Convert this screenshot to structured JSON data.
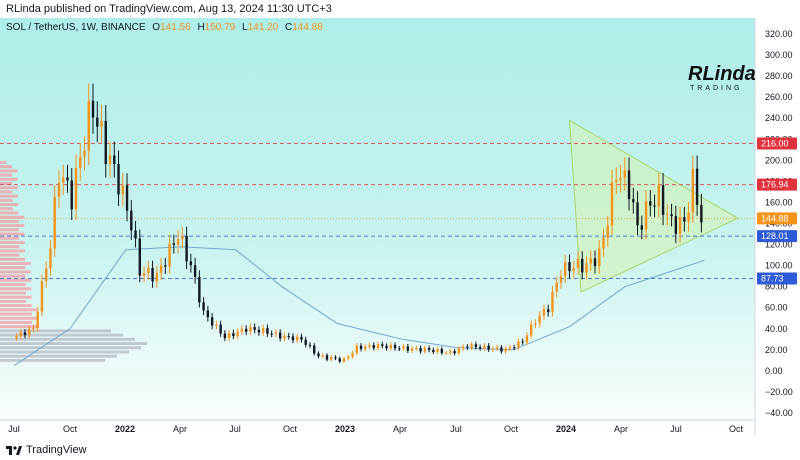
{
  "header": {
    "published": "RLinda published on TradingView.com, Aug 13, 2024 11:30 UTC+3"
  },
  "footer": {
    "brand": "TradingView"
  },
  "legend": {
    "symbol": "SOL / TetherUS, 1W, BINANCE",
    "o_label": "O",
    "o_value": "141.56",
    "h_label": "H",
    "h_value": "150.79",
    "l_label": "L",
    "l_value": "141.20",
    "c_label": "C",
    "c_value": "144.88"
  },
  "watermark": {
    "line1": "RLinda",
    "line2": "TRADING"
  },
  "colors": {
    "up": "#f7931a",
    "down": "#131722",
    "bg_top": "#aeeeea",
    "bg_bottom": "#ffffff",
    "ma": "#6ea7d6",
    "level": "#4a5dbd",
    "triangle": "#d6f2b0",
    "triangle_stroke": "#a8d66b"
  },
  "chart_data": {
    "type": "candlestick",
    "title": "SOL / TetherUS, 1W, BINANCE",
    "xlabel": "",
    "ylabel": "",
    "ylim": [
      -40,
      320
    ],
    "y_ticks": [
      "320.00",
      "300.00",
      "280.00",
      "260.00",
      "240.00",
      "220.00",
      "200.00",
      "180.00",
      "160.00",
      "140.00",
      "120.00",
      "100.00",
      "80.00",
      "60.00",
      "40.00",
      "20.00",
      "0.00",
      "−20.00",
      "−40.00"
    ],
    "x_ticks": [
      "Jul",
      "Oct",
      "2022",
      "Apr",
      "Jul",
      "Oct",
      "2023",
      "Apr",
      "Jul",
      "Oct",
      "2024",
      "Apr",
      "Jul",
      "Oct"
    ],
    "price_levels": [
      {
        "label": "216.00",
        "value": 216,
        "color": "#e0323c",
        "style": "dashed"
      },
      {
        "label": "176.94",
        "value": 176.94,
        "color": "#e0323c",
        "style": "dashed"
      },
      {
        "label": "144.88",
        "value": 144.88,
        "color": "#f7931a",
        "style": "dotted"
      },
      {
        "label": "128.01",
        "value": 128.01,
        "color": "#2e5bd8",
        "style": "dashed"
      },
      {
        "label": "87.73",
        "value": 87.73,
        "color": "#2e5bd8",
        "style": "dashed"
      }
    ],
    "triangle": {
      "apex_date": "2024-10-04",
      "apex_price": 145,
      "top_date": "2024-01-01",
      "top_price": 238,
      "bottom_date": "2024-01-20",
      "bottom_price": 75
    },
    "moving_average": [
      {
        "date": "2021-07-01",
        "value": 5
      },
      {
        "date": "2021-10-01",
        "value": 40
      },
      {
        "date": "2022-01-01",
        "value": 115
      },
      {
        "date": "2022-04-01",
        "value": 118
      },
      {
        "date": "2022-07-01",
        "value": 115
      },
      {
        "date": "2022-09-15",
        "value": 80
      },
      {
        "date": "2022-12-15",
        "value": 45
      },
      {
        "date": "2023-04-01",
        "value": 30
      },
      {
        "date": "2023-07-01",
        "value": 22
      },
      {
        "date": "2023-10-01",
        "value": 20
      },
      {
        "date": "2024-01-01",
        "value": 42
      },
      {
        "date": "2024-04-01",
        "value": 80
      },
      {
        "date": "2024-08-10",
        "value": 105
      }
    ],
    "ohlc_weekly_close": [
      {
        "date": "2021-07-05",
        "value": 33
      },
      {
        "date": "2021-08-02",
        "value": 40
      },
      {
        "date": "2021-08-30",
        "value": 120
      },
      {
        "date": "2021-09-13",
        "value": 190
      },
      {
        "date": "2021-10-04",
        "value": 165
      },
      {
        "date": "2021-11-01",
        "value": 240
      },
      {
        "date": "2021-11-08",
        "value": 250
      },
      {
        "date": "2021-11-29",
        "value": 210
      },
      {
        "date": "2021-12-20",
        "value": 180
      },
      {
        "date": "2022-01-10",
        "value": 140
      },
      {
        "date": "2022-01-24",
        "value": 95
      },
      {
        "date": "2022-02-21",
        "value": 90
      },
      {
        "date": "2022-03-28",
        "value": 130
      },
      {
        "date": "2022-04-18",
        "value": 100
      },
      {
        "date": "2022-05-09",
        "value": 55
      },
      {
        "date": "2022-06-13",
        "value": 32
      },
      {
        "date": "2022-07-18",
        "value": 40
      },
      {
        "date": "2022-08-15",
        "value": 38
      },
      {
        "date": "2022-09-12",
        "value": 33
      },
      {
        "date": "2022-10-17",
        "value": 30
      },
      {
        "date": "2022-11-14",
        "value": 14
      },
      {
        "date": "2022-12-26",
        "value": 10
      },
      {
        "date": "2023-01-16",
        "value": 22
      },
      {
        "date": "2023-02-20",
        "value": 24
      },
      {
        "date": "2023-04-10",
        "value": 21
      },
      {
        "date": "2023-05-15",
        "value": 20
      },
      {
        "date": "2023-06-19",
        "value": 17
      },
      {
        "date": "2023-07-17",
        "value": 24
      },
      {
        "date": "2023-08-14",
        "value": 22
      },
      {
        "date": "2023-09-18",
        "value": 20
      },
      {
        "date": "2023-10-16",
        "value": 28
      },
      {
        "date": "2023-11-06",
        "value": 48
      },
      {
        "date": "2023-11-27",
        "value": 60
      },
      {
        "date": "2023-12-18",
        "value": 95
      },
      {
        "date": "2024-01-08",
        "value": 100
      },
      {
        "date": "2024-01-29",
        "value": 100
      },
      {
        "date": "2024-02-19",
        "value": 110
      },
      {
        "date": "2024-03-04",
        "value": 145
      },
      {
        "date": "2024-03-18",
        "value": 190
      },
      {
        "date": "2024-04-08",
        "value": 175
      },
      {
        "date": "2024-04-22",
        "value": 135
      },
      {
        "date": "2024-05-13",
        "value": 160
      },
      {
        "date": "2024-05-27",
        "value": 165
      },
      {
        "date": "2024-06-17",
        "value": 140
      },
      {
        "date": "2024-07-08",
        "value": 140
      },
      {
        "date": "2024-07-22",
        "value": 180
      },
      {
        "date": "2024-08-05",
        "value": 145
      }
    ]
  }
}
